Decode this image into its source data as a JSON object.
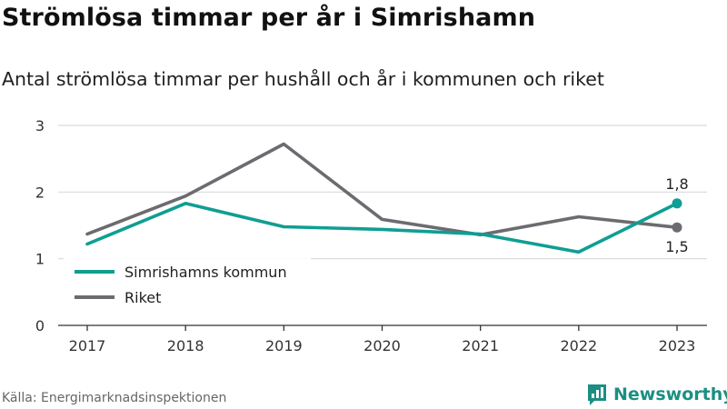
{
  "header": {
    "title": "Strömlösa timmar per år i Simrishamn",
    "subtitle": "Antal strömlösa timmar per hushåll och år i kommunen och riket"
  },
  "footer": {
    "source": "Källa: Energimarknadsinspektionen",
    "brand": "Newsworthy",
    "brand_icon": "newsworthy-logo-icon"
  },
  "colors": {
    "kommun": "#0f9e93",
    "riket": "#6b6b70",
    "grid": "#d9d9d9",
    "axis": "#333333"
  },
  "chart_data": {
    "type": "line",
    "x": [
      "2017",
      "2018",
      "2019",
      "2020",
      "2021",
      "2022",
      "2023"
    ],
    "ylim": [
      0,
      3
    ],
    "yticks": [
      "0",
      "1",
      "2",
      "3"
    ],
    "grid": true,
    "legend_position": "bottom-left",
    "series": [
      {
        "name": "Simrishamns kommun",
        "values": [
          1.22,
          1.83,
          1.48,
          1.44,
          1.37,
          1.1,
          1.83
        ]
      },
      {
        "name": "Riket",
        "values": [
          1.37,
          1.94,
          2.72,
          1.59,
          1.36,
          1.63,
          1.47
        ]
      }
    ],
    "end_labels": [
      "1,8",
      "1,5"
    ]
  }
}
